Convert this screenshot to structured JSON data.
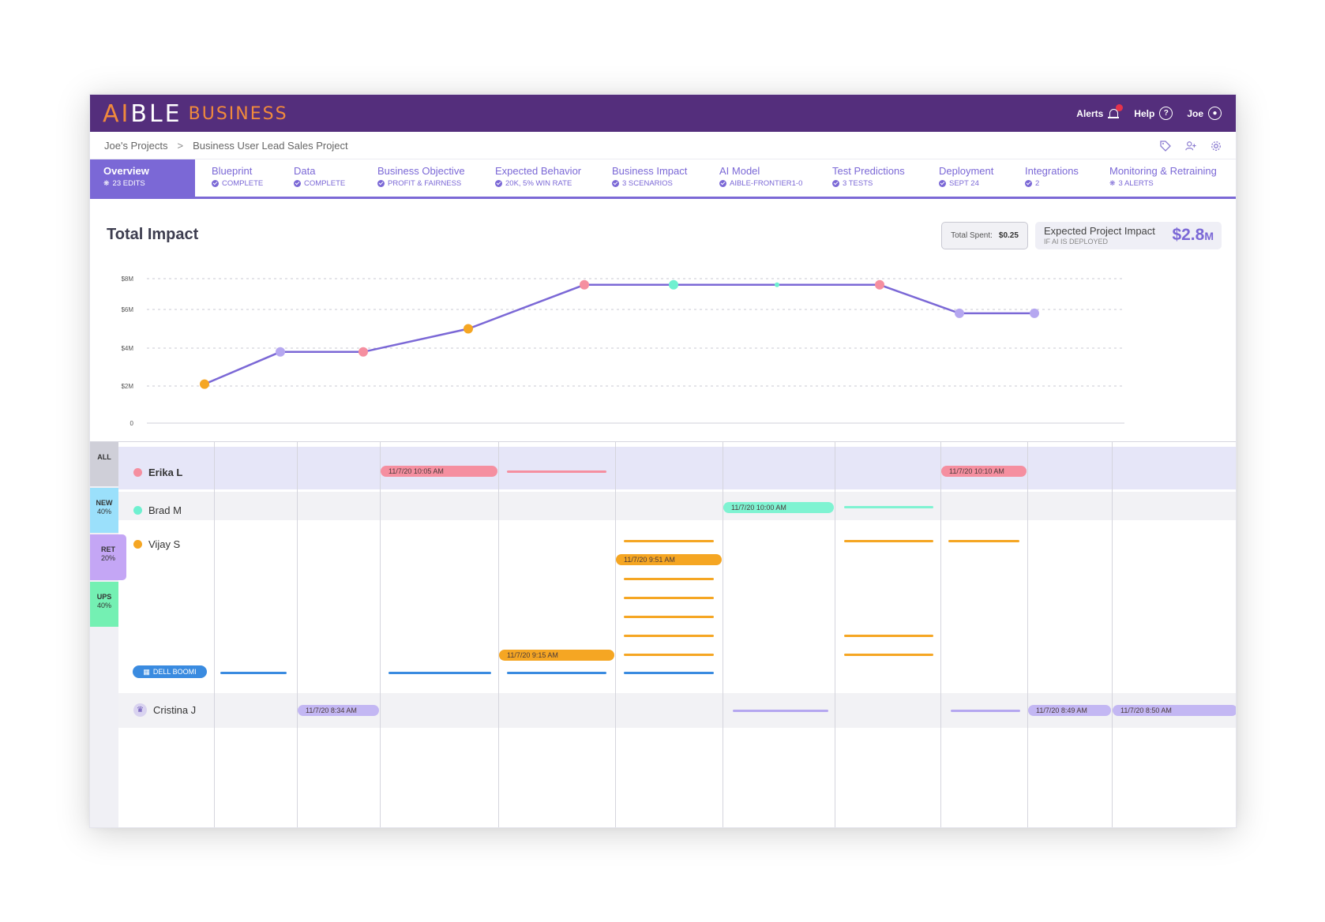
{
  "header": {
    "brand_main_a": "AI",
    "brand_main_b": "BLE",
    "brand_sub": "BUSINESS",
    "alerts_label": "Alerts",
    "help_label": "Help",
    "user_label": "Joe"
  },
  "breadcrumb": {
    "projects": "Joe's Projects",
    "separator": ">",
    "current": "Business User Lead Sales Project"
  },
  "tabs": [
    {
      "label": "Overview",
      "sub": "23 EDITS"
    },
    {
      "label": "Blueprint",
      "sub": "COMPLETE"
    },
    {
      "label": "Data",
      "sub": "COMPLETE"
    },
    {
      "label": "Business Objective",
      "sub": "PROFIT & FAIRNESS"
    },
    {
      "label": "Expected Behavior",
      "sub": "20K, 5% WIN RATE"
    },
    {
      "label": "Business Impact",
      "sub": "3 SCENARIOS"
    },
    {
      "label": "AI Model",
      "sub": "AIBLE-FRONTIER1-0"
    },
    {
      "label": "Test Predictions",
      "sub": "3 TESTS"
    },
    {
      "label": "Deployment",
      "sub": "SEPT 24"
    },
    {
      "label": "Integrations",
      "sub": "2"
    },
    {
      "label": "Monitoring & Retraining",
      "sub": "3 ALERTS"
    }
  ],
  "impact": {
    "title": "Total Impact",
    "spent_label": "Total Spent:",
    "spent_value": "$0.25",
    "expected_label": "Expected Project Impact",
    "expected_sub": "IF AI IS DEPLOYED",
    "expected_value": "$2.8",
    "expected_unit": "M"
  },
  "colors": {
    "purple": "#542e7c",
    "accent": "#7b68d6",
    "pink": "#f58fa0",
    "teal": "#6ff0d0",
    "orange": "#f5a623",
    "lavender": "#b5a7f0",
    "blue": "#3a8be0"
  },
  "chart_data": {
    "type": "line",
    "y_ticks": [
      "0",
      "$2M",
      "$4M",
      "$6M",
      "$8M"
    ],
    "ylim": [
      0,
      8
    ],
    "points": [
      {
        "x": 1,
        "y": 2.1,
        "color": "orange"
      },
      {
        "x": 2,
        "y": 3.8,
        "color": "lavender"
      },
      {
        "x": 3,
        "y": 3.8,
        "color": "pink"
      },
      {
        "x": 4,
        "y": 5.0,
        "color": "orange"
      },
      {
        "x": 5,
        "y": 7.6,
        "color": "pink"
      },
      {
        "x": 6,
        "y": 7.6,
        "color": "teal"
      },
      {
        "x": 7,
        "y": 7.6,
        "color": "teal"
      },
      {
        "x": 8,
        "y": 7.6,
        "color": "pink"
      },
      {
        "x": 9,
        "y": 5.8,
        "color": "lavender"
      },
      {
        "x": 10,
        "y": 5.8,
        "color": "lavender"
      }
    ],
    "grid": true
  },
  "segments": [
    {
      "name": "ALL",
      "pct": ""
    },
    {
      "name": "NEW",
      "pct": "40%"
    },
    {
      "name": "RET",
      "pct": "20%"
    },
    {
      "name": "UPS",
      "pct": "40%"
    }
  ],
  "people": [
    {
      "name": "Erika L",
      "color": "pink"
    },
    {
      "name": "Brad M",
      "color": "teal"
    },
    {
      "name": "Vijay S",
      "color": "orange"
    },
    {
      "name": "Cristina J",
      "color": "lavender"
    }
  ],
  "integration_label": "DELL BOOMI",
  "pills": [
    {
      "text": "11/7/20   10:05 AM",
      "color": "pink"
    },
    {
      "text": "11/7/20   10:10 AM",
      "color": "pink"
    },
    {
      "text": "11/7/20   10:00 AM",
      "color": "teal"
    },
    {
      "text": "11/7/20   9:51 AM",
      "color": "orange"
    },
    {
      "text": "11/7/20   9:15 AM",
      "color": "orange"
    },
    {
      "text": "11/7/20   8:34 AM",
      "color": "lavender"
    },
    {
      "text": "11/7/20   8:49 AM",
      "color": "lavender"
    },
    {
      "text": "11/7/20   8:50 AM",
      "color": "lavender"
    }
  ]
}
